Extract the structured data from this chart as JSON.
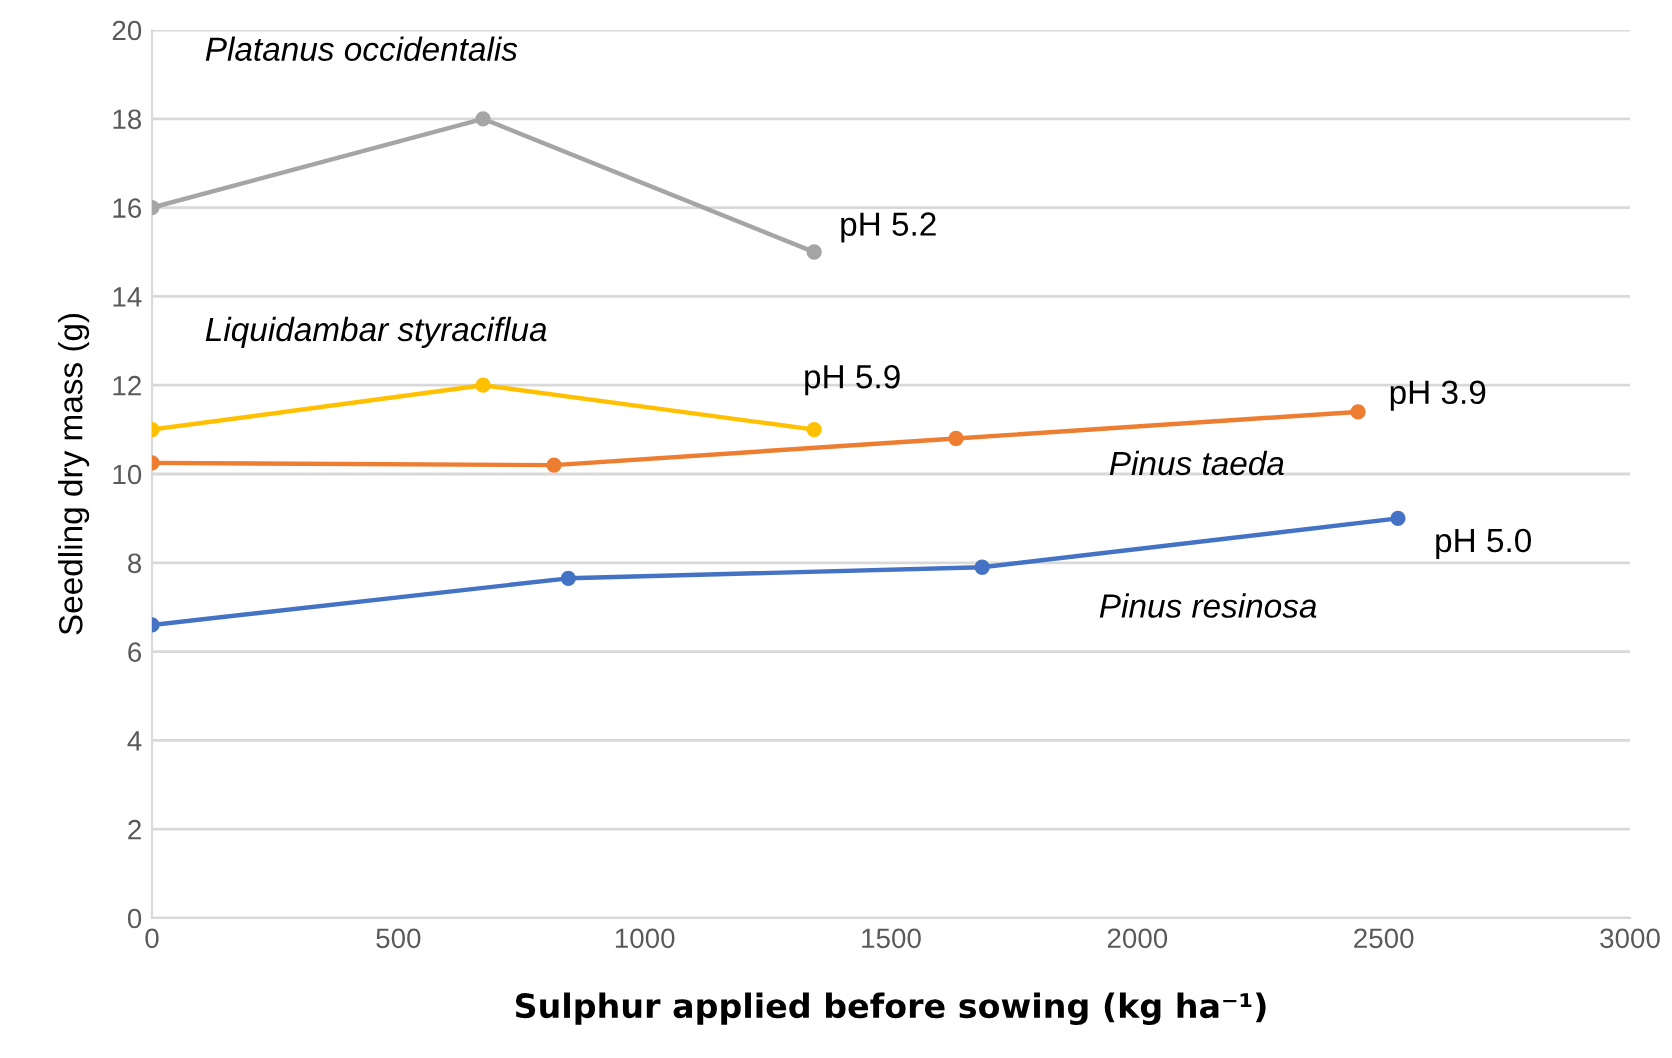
{
  "chart_data": {
    "type": "line",
    "xlabel": "Sulphur applied before sowing (kg ha⁻¹)",
    "ylabel": "Seedling dry mass (g)",
    "xlim": [
      0,
      3000
    ],
    "xticks": [
      0,
      500,
      1000,
      1500,
      2000,
      2500,
      3000
    ],
    "ylim": [
      0,
      20
    ],
    "yticks": [
      0,
      2,
      4,
      6,
      8,
      10,
      12,
      14,
      16,
      18,
      20
    ],
    "grid": "y",
    "marker": "circle",
    "line_style": "solid",
    "legend": false,
    "series": [
      {
        "name": "Platanus occidentalis",
        "color": "#a5a5a5",
        "x": [
          0,
          672,
          1344
        ],
        "values": [
          16,
          18,
          15
        ]
      },
      {
        "name": "Liquidambar styraciflua",
        "color": "#ffc000",
        "x": [
          0,
          672,
          1344
        ],
        "values": [
          11,
          12,
          11
        ]
      },
      {
        "name": "Pinus taeda",
        "color": "#ed7d31",
        "x": [
          0,
          816,
          1632,
          2448
        ],
        "values": [
          10.25,
          10.2,
          10.8,
          11.4
        ]
      },
      {
        "name": "Pinus resinosa",
        "color": "#4472c4",
        "x": [
          0,
          845,
          1685,
          2529
        ],
        "values": [
          6.6,
          7.65,
          7.9,
          9.0
        ]
      }
    ],
    "annotations": [
      {
        "text": "pH 5.2",
        "x": 1344,
        "y": 15
      },
      {
        "text": "pH 5.9",
        "x": 1344,
        "y": 11
      },
      {
        "text": "pH 3.9",
        "x": 2448,
        "y": 11.4
      },
      {
        "text": "pH 5.0",
        "x": 2529,
        "y": 9.0
      }
    ]
  }
}
